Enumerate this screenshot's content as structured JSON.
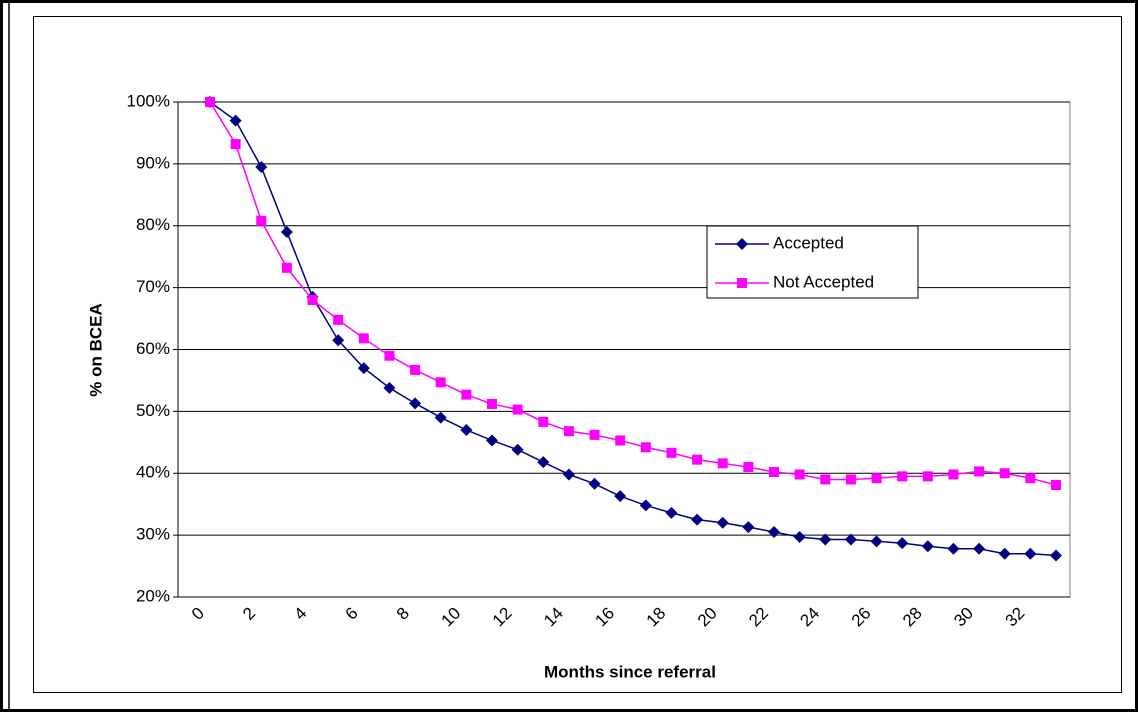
{
  "chart_data": {
    "type": "line",
    "x_label": "Months since referral",
    "y_label": "% on BCEA",
    "categories": [
      "0",
      null,
      "2",
      null,
      "4",
      null,
      "6",
      null,
      "8",
      null,
      "10",
      null,
      "12",
      null,
      "14",
      null,
      "16",
      null,
      "18",
      null,
      "20",
      null,
      "22",
      null,
      "24",
      null,
      "26",
      null,
      "28",
      null,
      "30",
      null,
      "32",
      null
    ],
    "series": [
      {
        "name": "Accepted",
        "color": "#000080",
        "marker": "diamond",
        "values": [
          100,
          97,
          89.5,
          79,
          68.5,
          61.5,
          57,
          53.8,
          51.3,
          49,
          47,
          45.3,
          43.8,
          41.8,
          39.8,
          38.3,
          36.3,
          34.8,
          33.6,
          32.5,
          32,
          31.3,
          30.5,
          29.7,
          29.3,
          29.3,
          29,
          28.7,
          28.2,
          27.8,
          27.8,
          27,
          27,
          26.7
        ]
      },
      {
        "name": "Not Accepted",
        "color": "#ff00ff",
        "marker": "square",
        "values": [
          100,
          93.2,
          80.8,
          73.2,
          68,
          64.8,
          61.8,
          59,
          56.7,
          54.7,
          52.7,
          51.2,
          50.3,
          48.3,
          46.8,
          46.2,
          45.3,
          44.2,
          43.3,
          42.2,
          41.6,
          41,
          40.2,
          39.8,
          39,
          39,
          39.2,
          39.5,
          39.5,
          39.8,
          40.3,
          40,
          39.2,
          38.1
        ]
      }
    ],
    "ylim": [
      20,
      100
    ],
    "yticks": [
      {
        "value": 20,
        "label": "20%"
      },
      {
        "value": 30,
        "label": "30%"
      },
      {
        "value": 40,
        "label": "40%"
      },
      {
        "value": 50,
        "label": "50%"
      },
      {
        "value": 60,
        "label": "60%"
      },
      {
        "value": 70,
        "label": "70%"
      },
      {
        "value": 80,
        "label": "80%"
      },
      {
        "value": 90,
        "label": "90%"
      },
      {
        "value": 100,
        "label": "100%"
      }
    ],
    "grid": true,
    "legend": "right"
  }
}
